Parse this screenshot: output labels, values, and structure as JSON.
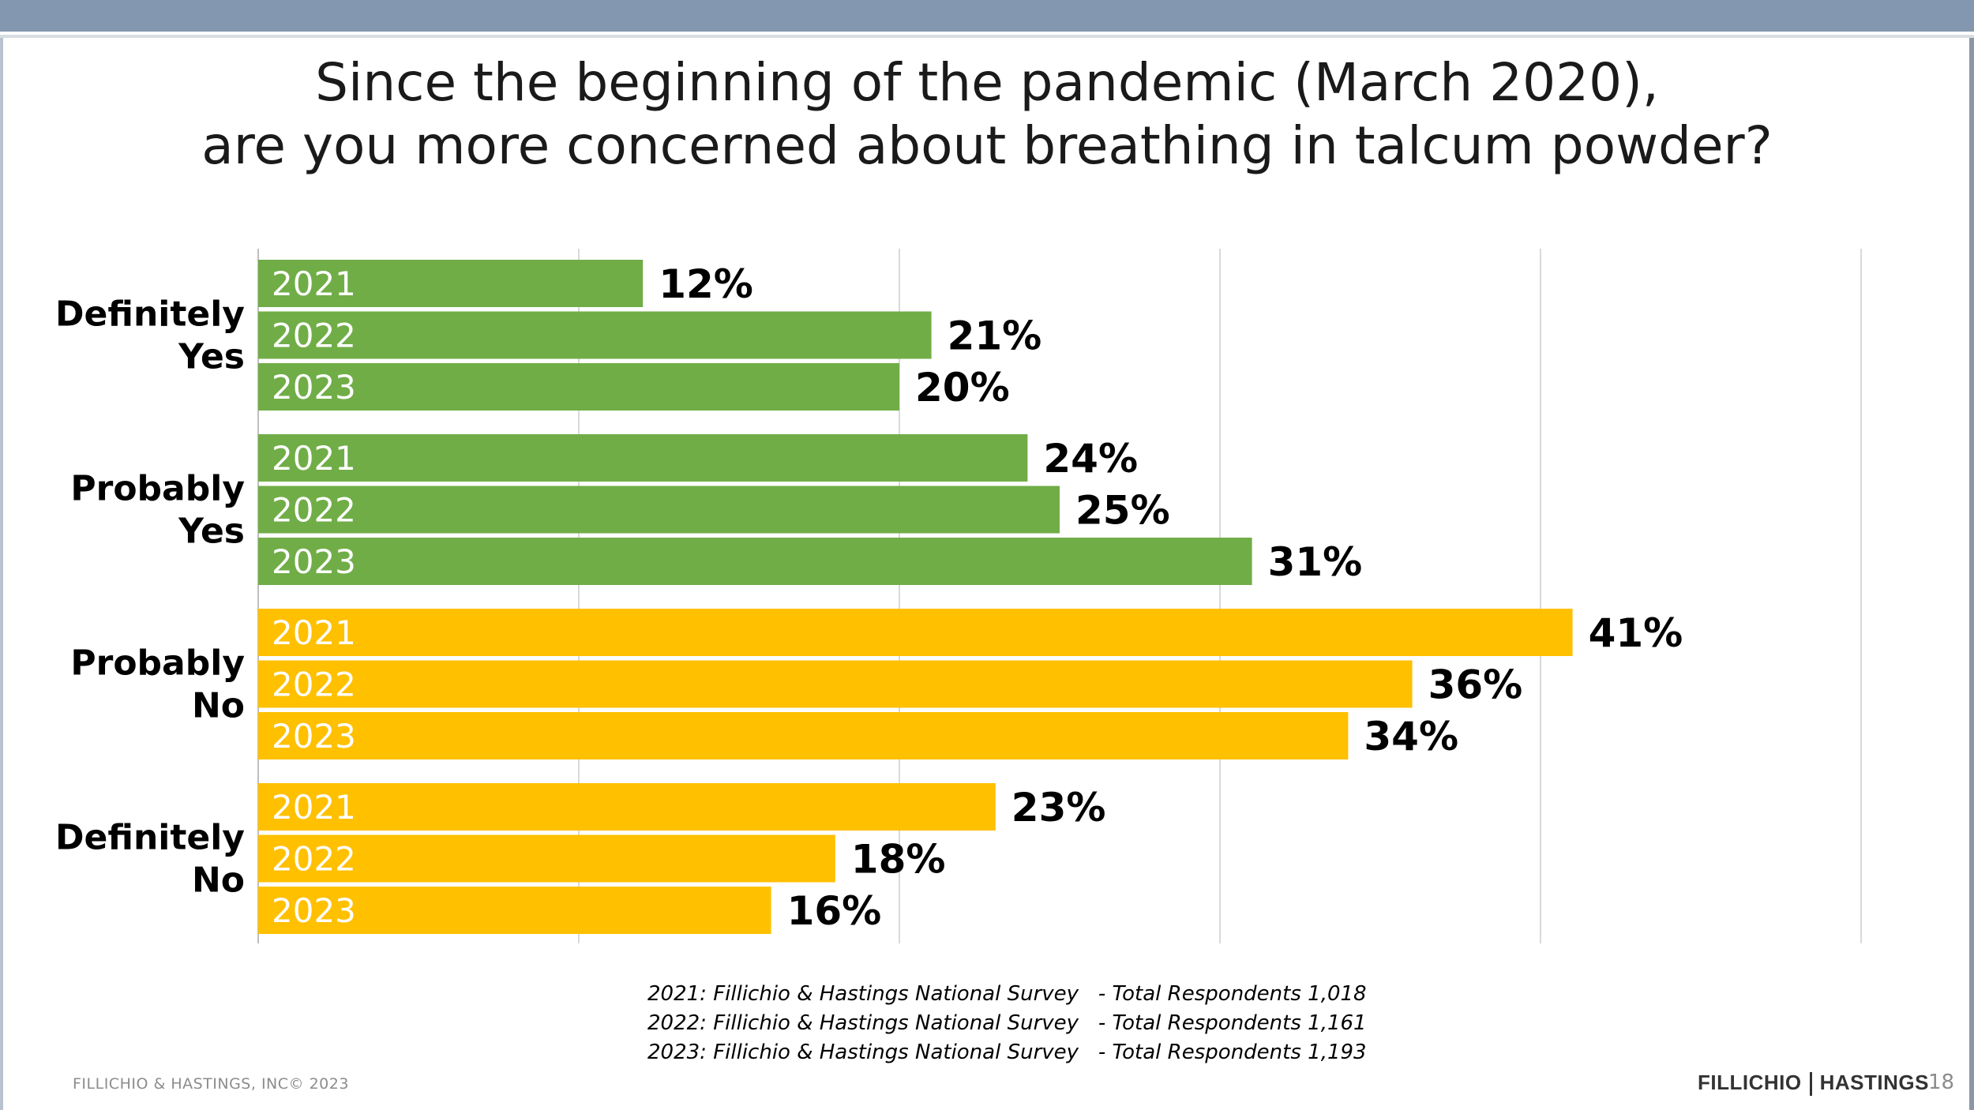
{
  "slide": {
    "title_line1": "Since the beginning of the pandemic (March 2020),",
    "title_line2": "are you more concerned about breathing in talcum powder?",
    "sources": [
      "2021: Fillichio & Hastings National Survey   - Total Respondents 1,018",
      "2022: Fillichio & Hastings National Survey   - Total Respondents 1,161",
      "2023: Fillichio & Hastings National Survey   - Total Respondents 1,193"
    ],
    "copyright": "FILLICHIO & HASTINGS, INC© 2023",
    "logo_left": "FILLICHIO",
    "logo_right": "HASTINGS",
    "page_number": "18"
  },
  "colors": {
    "header_band": "#8497b0",
    "yes_bars": "#70ad47",
    "no_bars": "#ffc000",
    "gridline": "#d9d9d9"
  },
  "chart_data": {
    "type": "bar",
    "orientation": "horizontal",
    "title": "Since the beginning of the pandemic (March 2020), are you more concerned about breathing in talcum powder?",
    "categories": [
      "Definitely Yes",
      "Probably Yes",
      "Probably No",
      "Definitely No"
    ],
    "category_lines": [
      [
        "Definitely",
        "Yes"
      ],
      [
        "Probably",
        "Yes"
      ],
      [
        "Probably",
        "No"
      ],
      [
        "Definitely",
        "No"
      ]
    ],
    "series_labels": [
      "2021",
      "2022",
      "2023"
    ],
    "values": [
      [
        12,
        21,
        20
      ],
      [
        24,
        25,
        31
      ],
      [
        41,
        36,
        34
      ],
      [
        23,
        18,
        16
      ]
    ],
    "value_labels": [
      [
        "12%",
        "21%",
        "20%"
      ],
      [
        "24%",
        "25%",
        "31%"
      ],
      [
        "41%",
        "36%",
        "34%"
      ],
      [
        "23%",
        "18%",
        "16%"
      ]
    ],
    "bar_color_by_category": [
      "#70ad47",
      "#70ad47",
      "#ffc000",
      "#ffc000"
    ],
    "xlim": [
      0,
      50
    ],
    "grid": true,
    "gridline_step": 10,
    "xlabel": "",
    "ylabel": ""
  }
}
